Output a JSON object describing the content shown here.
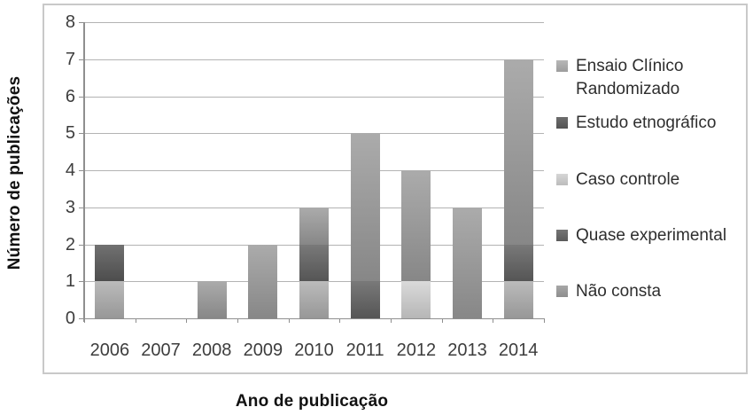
{
  "chart_data": {
    "type": "bar",
    "stacked": true,
    "title": "",
    "xlabel": "Ano de publicação",
    "ylabel": "Número de publicações",
    "categories": [
      "2006",
      "2007",
      "2008",
      "2009",
      "2010",
      "2011",
      "2012",
      "2013",
      "2014"
    ],
    "series": [
      {
        "name": "Ensaio Clínico Randomizado",
        "color": "#a9a9a9",
        "values": [
          1,
          0,
          0,
          0,
          1,
          0,
          0,
          0,
          1
        ]
      },
      {
        "name": "Estudo etnográfico",
        "color": "#5f5f5f",
        "values": [
          1,
          0,
          0,
          0,
          0,
          0,
          0,
          0,
          0
        ]
      },
      {
        "name": "Caso controle",
        "color": "#c8c8c8",
        "values": [
          0,
          0,
          0,
          0,
          0,
          0,
          1,
          0,
          0
        ]
      },
      {
        "name": "Quase experimental",
        "color": "#676767",
        "values": [
          0,
          0,
          0,
          0,
          1,
          1,
          0,
          0,
          1
        ]
      },
      {
        "name": "Não consta",
        "color": "#999999",
        "values": [
          0,
          0,
          1,
          2,
          1,
          4,
          3,
          3,
          5
        ]
      }
    ],
    "totals": [
      2,
      0,
      1,
      2,
      3,
      5,
      4,
      3,
      7
    ],
    "yticks": [
      0,
      1,
      2,
      3,
      4,
      5,
      6,
      7,
      8
    ],
    "ylim": [
      0,
      8
    ],
    "ytick_step": 1,
    "grid": true,
    "legend_position": "right"
  },
  "colors": {
    "background": "#ffffff",
    "chart_border": "#c9c9c9",
    "gridline": "#b3b3b3",
    "axis_line": "#8f8f8f",
    "tick_text": "#3d3d3d",
    "title_text": "#111111",
    "legend_text": "#2e2e2e"
  }
}
